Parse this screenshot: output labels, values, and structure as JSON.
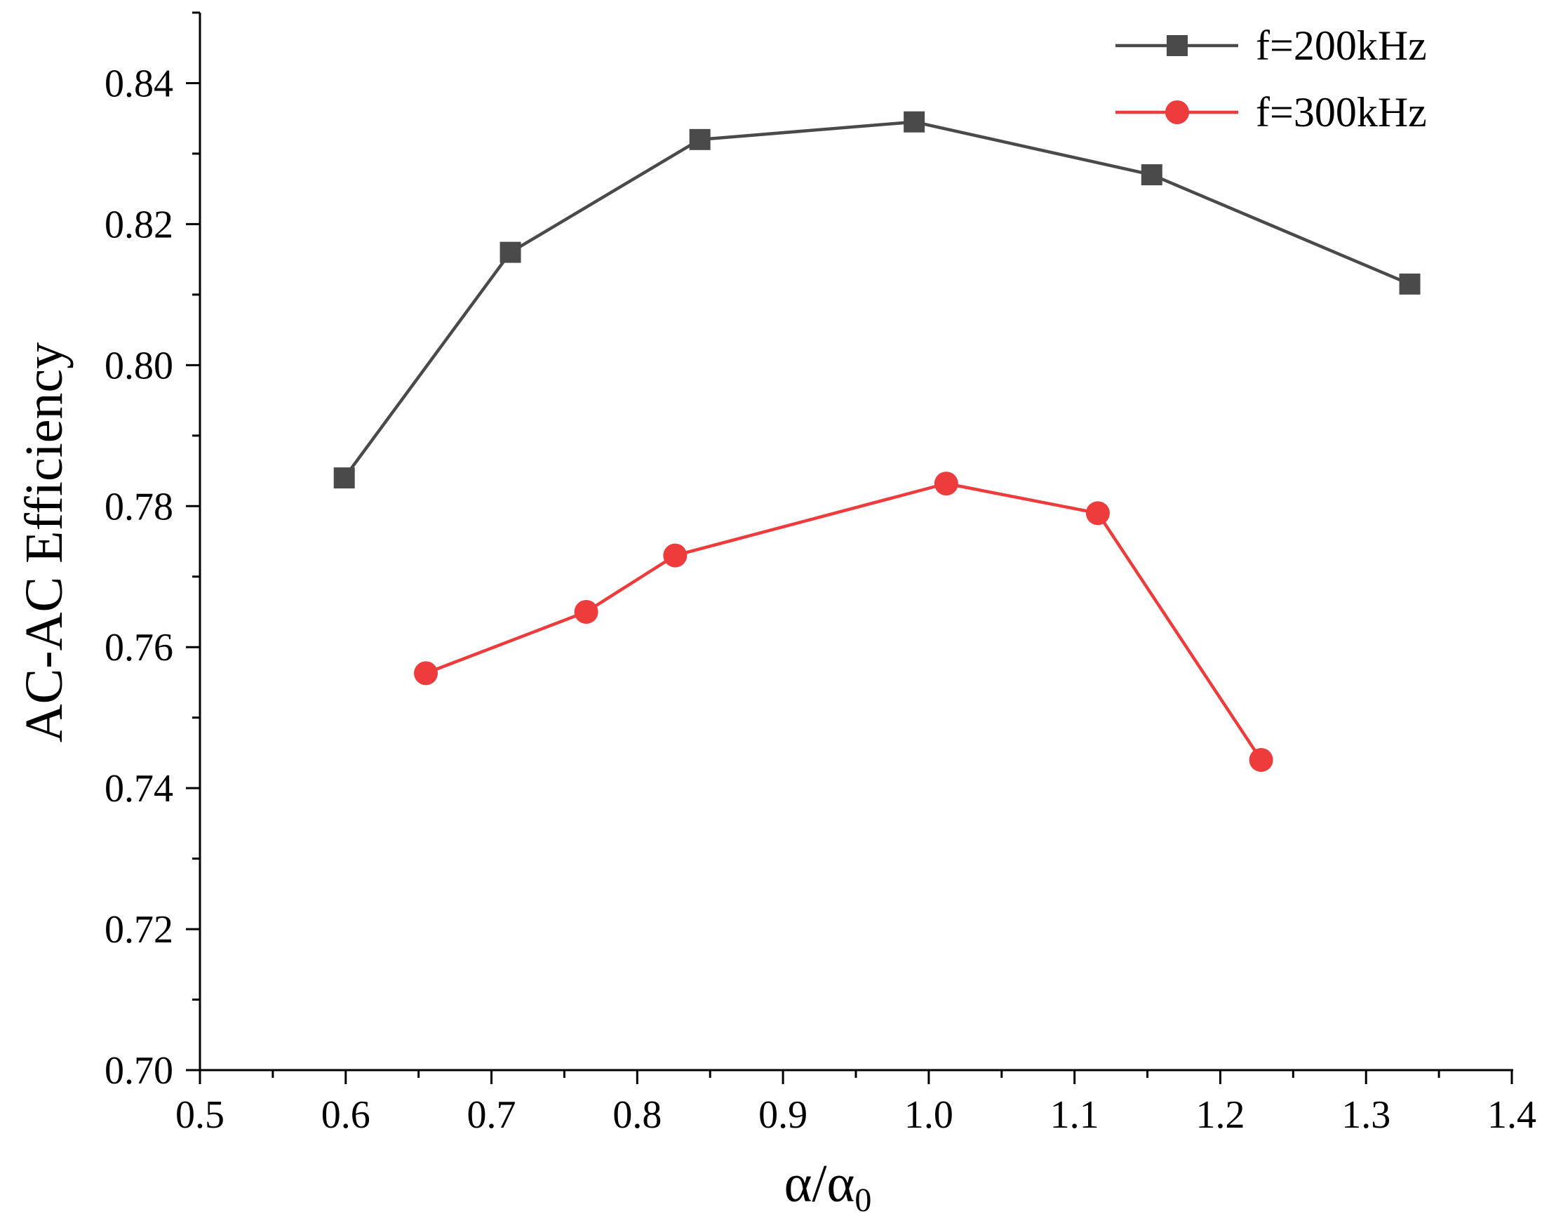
{
  "chart_data": {
    "type": "line",
    "title": "",
    "xlabel": "α/α",
    "xlabel_subscript": "0",
    "ylabel": "AC-AC Efficiency",
    "xlim": [
      0.5,
      1.4
    ],
    "ylim": [
      0.7,
      0.85
    ],
    "x_ticks": [
      0.5,
      0.6,
      0.7,
      0.8,
      0.9,
      1.0,
      1.1,
      1.2,
      1.3,
      1.4
    ],
    "x_tick_labels": [
      "0.5",
      "0.6",
      "0.7",
      "0.8",
      "0.9",
      "1.0",
      "1.1",
      "1.2",
      "1.3",
      "1.4"
    ],
    "y_ticks": [
      0.7,
      0.72,
      0.74,
      0.76,
      0.78,
      0.8,
      0.82,
      0.84
    ],
    "y_tick_labels": [
      "0.70",
      "0.72",
      "0.74",
      "0.76",
      "0.78",
      "0.80",
      "0.82",
      "0.84"
    ],
    "grid": false,
    "legend_position": "top-right",
    "series": [
      {
        "name": "f=200kHz",
        "color": "#4a4a4a",
        "marker": "square",
        "x": [
          0.599,
          0.713,
          0.843,
          0.99,
          1.153,
          1.33
        ],
        "y": [
          0.784,
          0.816,
          0.832,
          0.8345,
          0.827,
          0.8115
        ]
      },
      {
        "name": "f=300kHz",
        "color": "#ee3b3b",
        "marker": "circle",
        "x": [
          0.655,
          0.765,
          0.826,
          1.012,
          1.116,
          1.228
        ],
        "y": [
          0.7563,
          0.765,
          0.773,
          0.7832,
          0.779,
          0.744
        ]
      }
    ]
  }
}
